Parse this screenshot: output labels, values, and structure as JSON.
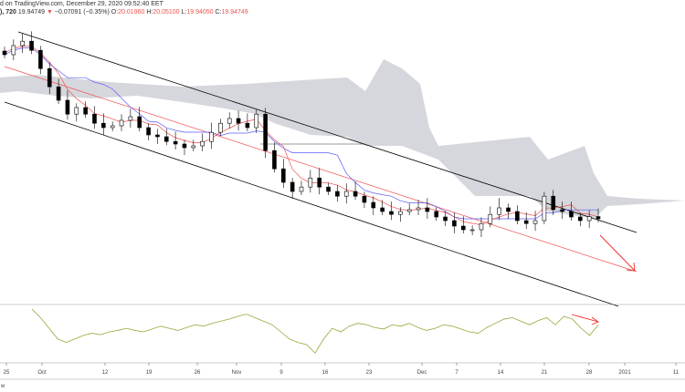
{
  "header": {
    "line1": "d on TradingView.com, December 29, 2020 09:52:40 EET",
    "interval": "), 720",
    "last": "19.94749",
    "down_arrow": "▼",
    "change": "−0.07091 (−0.35%)",
    "o_label": "O:",
    "o": "20.01960",
    "h_label": "H:",
    "h": "20.05100",
    "l_label": "L:",
    "l": "19.94050",
    "c_label": "C:",
    "c": "19.94749"
  },
  "footer_text": "w",
  "colors": {
    "up": "#ffffff",
    "down": "#000000",
    "tenkan": "#5b5bff",
    "kijun": "#ef5350",
    "cloud": "#d6d7dc",
    "channel": "#000000",
    "osc": "#9aa63a",
    "arrow": "#ef2b2b"
  },
  "chart_data": {
    "type": "candlestick",
    "title": "",
    "x_tick_labels": [
      "25",
      "Oct",
      "12",
      "19",
      "26",
      "Nov",
      "9",
      "16",
      "23",
      "Dec",
      "7",
      "14",
      "21",
      "28",
      "2021",
      "11"
    ],
    "closes": [
      24.45,
      24.7,
      24.82,
      24.57,
      24.07,
      23.57,
      23.2,
      22.82,
      23.0,
      22.82,
      22.57,
      22.45,
      22.5,
      22.65,
      22.75,
      22.45,
      22.25,
      22.2,
      22.07,
      22.0,
      21.9,
      21.95,
      22.07,
      22.32,
      22.57,
      22.7,
      22.57,
      22.45,
      22.82,
      21.82,
      21.32,
      20.95,
      20.7,
      20.82,
      21.07,
      20.82,
      20.7,
      20.57,
      20.7,
      20.57,
      20.4,
      20.25,
      20.15,
      20.07,
      20.15,
      20.2,
      20.25,
      20.15,
      20.0,
      19.9,
      19.75,
      19.65,
      19.65,
      19.82,
      20.07,
      20.25,
      20.15,
      19.9,
      19.82,
      19.9,
      20.57,
      20.2,
      20.15,
      20.0,
      19.9,
      20.01,
      19.95
    ],
    "osc_values": [
      72,
      60,
      45,
      30,
      25,
      30,
      35,
      38,
      36,
      40,
      42,
      45,
      42,
      40,
      44,
      48,
      45,
      42,
      46,
      50,
      48,
      52,
      55,
      58,
      62,
      65,
      60,
      55,
      50,
      40,
      30,
      25,
      22,
      10,
      30,
      45,
      40,
      48,
      52,
      50,
      46,
      44,
      50,
      48,
      52,
      46,
      42,
      45,
      50,
      48,
      44,
      40,
      38,
      46,
      52,
      58,
      60,
      55,
      50,
      56,
      60,
      50,
      62,
      58,
      45,
      35,
      50
    ],
    "osc_range": [
      0,
      80
    ]
  }
}
